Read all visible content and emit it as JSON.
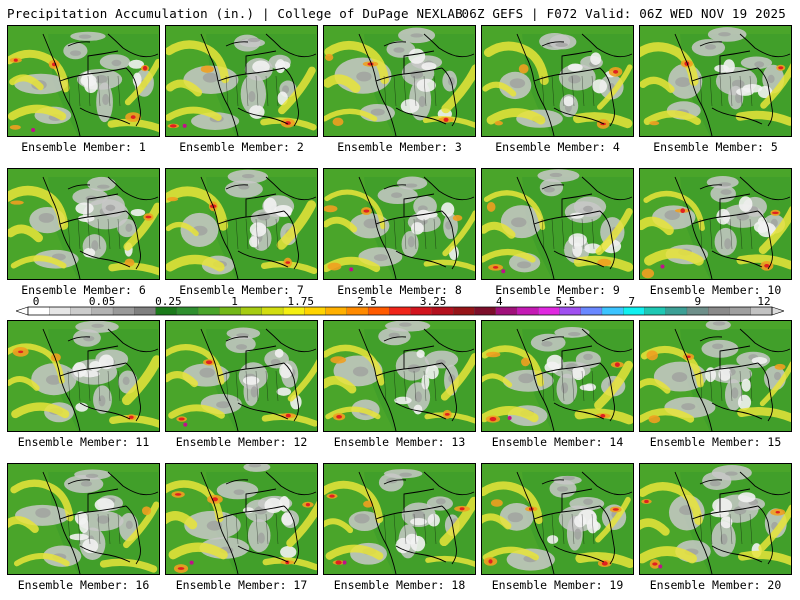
{
  "header": {
    "left": "Precipitation Accumulation (in.) | College of DuPage NEXLAB",
    "right": "06Z GEFS | F072 Valid: 06Z WED NOV 19 2025"
  },
  "panel_label_prefix": "Ensemble Member: ",
  "rows_top": [
    [
      1,
      2,
      3,
      4,
      5
    ],
    [
      6,
      7,
      8,
      9,
      10
    ]
  ],
  "rows_bottom": [
    [
      11,
      12,
      13,
      14,
      15
    ],
    [
      16,
      17,
      18,
      19,
      20
    ]
  ],
  "colorbar": {
    "tick_labels": [
      "0",
      "0.05",
      "0.25",
      "1",
      "1.75",
      "2.5",
      "3.25",
      "4",
      "5.5",
      "7",
      "9",
      "12"
    ],
    "colors": [
      "#ffffff",
      "#e6e6e6",
      "#cccccc",
      "#b3b3b3",
      "#9a9a9a",
      "#808080",
      "#1b7a1b",
      "#2f8f2f",
      "#4aa52a",
      "#74b818",
      "#a6cc12",
      "#d2dd10",
      "#f4ef12",
      "#ffd400",
      "#ffb000",
      "#ff8a00",
      "#ff5a00",
      "#f0251a",
      "#d2141e",
      "#b4101e",
      "#961418",
      "#7c0e2a",
      "#a0107a",
      "#c41ab4",
      "#e028e0",
      "#a050f0",
      "#6a88ff",
      "#3cc4ff",
      "#10f0f0",
      "#1ec8b4",
      "#3ca096",
      "#6e8f8a",
      "#8a8a8a",
      "#a0a0a0",
      "#c2c2c2"
    ],
    "endcaps": {
      "left": "#ffffff",
      "right": "#dcdcdc"
    }
  },
  "map_colors": {
    "land_base": "#3a9a2a",
    "ocean_base": "#4aa52a",
    "gray_low": "#c8c8c8",
    "gray_mid": "#9c9c9c",
    "yellow": "#e8e43a",
    "orange": "#f0a020",
    "red": "#e02020",
    "magenta": "#c0108a",
    "outline": "#000000"
  }
}
